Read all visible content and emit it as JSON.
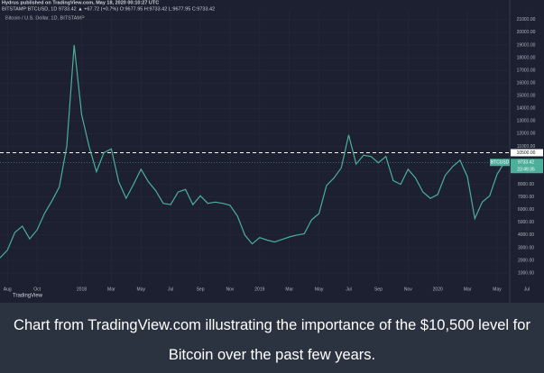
{
  "chart_data": {
    "type": "line",
    "publisher_line": "Hydrus published on TradingView.com, May 18, 2020 00:10:27 UTC",
    "symbol_line": "BITSTAMP:BTCUSD, 1D 9733.42 ▲ +67.72 (+0.7%) O:9677.95 H:9733.42 L:9677.95 C:9733.42",
    "title": "Bitcoin / U.S. Dollar, 1D, BITSTAMP",
    "categories": [
      null,
      "Aug",
      null,
      null,
      null,
      "Oct",
      null,
      null,
      null,
      null,
      null,
      "2018",
      null,
      null,
      null,
      "Mar",
      null,
      null,
      null,
      "May",
      null,
      null,
      null,
      "Jul",
      null,
      null,
      null,
      "Sep",
      null,
      null,
      null,
      "Nov",
      null,
      null,
      null,
      "2019",
      null,
      null,
      null,
      "Mar",
      null,
      null,
      null,
      "May",
      null,
      null,
      null,
      "Jul",
      null,
      null,
      null,
      "Sep",
      null,
      null,
      null,
      "Nov",
      null,
      null,
      null,
      "2020",
      null,
      null,
      null,
      "Mar",
      null,
      null,
      null,
      "May",
      null,
      null,
      null,
      "Jul"
    ],
    "series": [
      {
        "name": "BTCUSD",
        "color": "#4caf9a",
        "values": [
          2200,
          2800,
          4200,
          4700,
          3700,
          4400,
          5700,
          6700,
          7800,
          11000,
          19000,
          13500,
          11000,
          9000,
          10500,
          10800,
          8200,
          6900,
          8000,
          9200,
          8200,
          7500,
          6500,
          6400,
          7400,
          7600,
          6400,
          7100,
          6500,
          6600,
          6500,
          6350,
          5500,
          4000,
          3300,
          3800,
          3600,
          3450,
          3650,
          3850,
          4000,
          4100,
          5200,
          5700,
          7900,
          8500,
          9300,
          11900,
          9600,
          10300,
          10200,
          9700,
          10200,
          8300,
          8000,
          9200,
          8500,
          7400,
          6900,
          7200,
          8700,
          9400,
          9900,
          8600,
          5300,
          6600,
          7100,
          8800,
          9733.42,
          null,
          null,
          null
        ]
      }
    ],
    "ylim": [
      150,
      21700
    ],
    "yticks": [
      {
        "value": 1000,
        "label": "1000.00"
      },
      {
        "value": 2000,
        "label": "2000.00"
      },
      {
        "value": 3000,
        "label": "3000.00"
      },
      {
        "value": 4000,
        "label": "4000.00"
      },
      {
        "value": 5000,
        "label": "5000.00"
      },
      {
        "value": 6000,
        "label": "6000.00"
      },
      {
        "value": 7000,
        "label": "7000.00"
      },
      {
        "value": 8000,
        "label": "8000.00"
      },
      {
        "value": 9000,
        "label": "9000.00"
      },
      {
        "value": 11000,
        "label": "11000.00"
      },
      {
        "value": 12000,
        "label": "12000.00"
      },
      {
        "value": 13000,
        "label": "13000.00"
      },
      {
        "value": 14000,
        "label": "14000.00"
      },
      {
        "value": 15000,
        "label": "15000.00"
      },
      {
        "value": 16000,
        "label": "16000.00"
      },
      {
        "value": 17000,
        "label": "17000.00"
      },
      {
        "value": 18000,
        "label": "18000.00"
      },
      {
        "value": 19000,
        "label": "19000.00"
      },
      {
        "value": 20000,
        "label": "20000.00"
      },
      {
        "value": 21000,
        "label": "21000.00"
      }
    ],
    "hline": {
      "value": 10500,
      "label": "10500.00"
    },
    "last_price": {
      "value": 9733.42,
      "label": "9733.42"
    },
    "symbol_tag": "BTCUSD",
    "countdown": "23:49:35",
    "grid": true,
    "logo": "TradingView"
  },
  "caption": [
    "Chart from TradingView.com illustrating the importance of the $10,500 level for",
    "Bitcoin over the past few years."
  ]
}
